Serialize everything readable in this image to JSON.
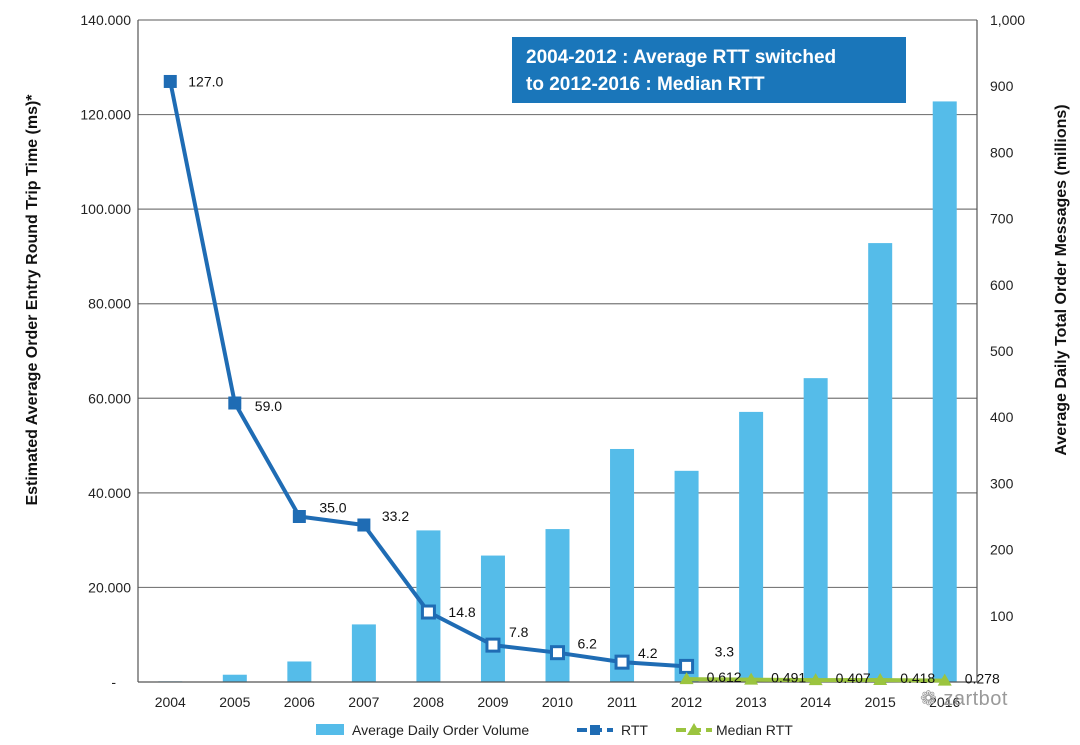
{
  "colors": {
    "volume_bar": "#55bce9",
    "rtt_line": "#1f6cb4",
    "median_line": "#9bc43f",
    "callout_bg": "#1a76ba",
    "grid": "#7a7a7a"
  },
  "callout": {
    "line1": "2004-2012 : Average RTT switched",
    "line2": "to 2012-2016 : Median RTT"
  },
  "watermark": "zartbot",
  "chart_data": {
    "type": "bar+line",
    "categories": [
      "2004",
      "2005",
      "2006",
      "2007",
      "2008",
      "2009",
      "2010",
      "2011",
      "2012",
      "2013",
      "2014",
      "2015",
      "2016"
    ],
    "left_axis": {
      "label": "Estimated Average Order Entry Round Trip Time (ms)*",
      "ylim": [
        0,
        140
      ],
      "ticks": [
        {
          "value": 0,
          "label": "-"
        },
        {
          "value": 20,
          "label": "20.000"
        },
        {
          "value": 40,
          "label": "40.000"
        },
        {
          "value": 60,
          "label": "60.000"
        },
        {
          "value": 80,
          "label": "80.000"
        },
        {
          "value": 100,
          "label": "100.000"
        },
        {
          "value": 120,
          "label": "120.000"
        },
        {
          "value": 140,
          "label": "140.000"
        }
      ]
    },
    "right_axis": {
      "label": "Average Daily Total Order Messages (millions)",
      "ylim": [
        0,
        1000
      ],
      "ticks": [
        {
          "value": 100,
          "label": "100"
        },
        {
          "value": 200,
          "label": "200"
        },
        {
          "value": 300,
          "label": "300"
        },
        {
          "value": 400,
          "label": "400"
        },
        {
          "value": 500,
          "label": "500"
        },
        {
          "value": 600,
          "label": "600"
        },
        {
          "value": 700,
          "label": "700"
        },
        {
          "value": 800,
          "label": "800"
        },
        {
          "value": 900,
          "label": "900"
        },
        {
          "value": 1000,
          "label": "1,000"
        }
      ]
    },
    "series": [
      {
        "name": "Average Daily Order Volume",
        "type": "bar",
        "axis": "right",
        "values": [
          1,
          11,
          31,
          87,
          229,
          191,
          231,
          352,
          319,
          408,
          459,
          663,
          877
        ]
      },
      {
        "name": "RTT",
        "type": "line",
        "axis": "left",
        "x": [
          "2004",
          "2005",
          "2006",
          "2007",
          "2008",
          "2009",
          "2010",
          "2011",
          "2012"
        ],
        "values": [
          127.0,
          59.0,
          35.0,
          33.2,
          14.8,
          7.8,
          6.2,
          4.2,
          3.3
        ],
        "labels": [
          "127.0",
          "59.0",
          "35.0",
          "33.2",
          "14.8",
          "7.8",
          "6.2",
          "4.2",
          "3.3"
        ]
      },
      {
        "name": "Median RTT",
        "type": "line",
        "axis": "left",
        "x": [
          "2012",
          "2013",
          "2014",
          "2015",
          "2016"
        ],
        "values": [
          0.612,
          0.491,
          0.407,
          0.418,
          0.278
        ],
        "labels": [
          "0.612",
          "0.491",
          "0.407",
          "0.418",
          "0.278"
        ]
      }
    ],
    "legend": {
      "placement": "bottom",
      "items": [
        "Average Daily Order Volume",
        "RTT",
        "Median RTT"
      ]
    }
  }
}
